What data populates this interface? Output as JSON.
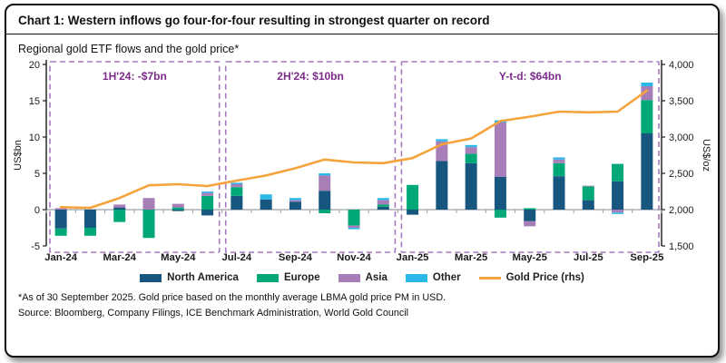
{
  "header": {
    "title": "Chart 1: Western inflows go four-for-four resulting in strongest quarter on record"
  },
  "subtitle": "Regional gold ETF flows and the gold price*",
  "axes": {
    "left_label": "US$bn",
    "right_label": "US$/oz",
    "left_ticks": [
      {
        "value": 20,
        "label": "20"
      },
      {
        "value": 15,
        "label": "15"
      },
      {
        "value": 10,
        "label": "10"
      },
      {
        "value": 5,
        "label": "5"
      },
      {
        "value": 0,
        "label": "0"
      },
      {
        "value": -5,
        "label": "-5"
      }
    ],
    "right_ticks": [
      {
        "value": 4000,
        "label": "4,000"
      },
      {
        "value": 3500,
        "label": "3,500"
      },
      {
        "value": 3000,
        "label": "3,000"
      },
      {
        "value": 2500,
        "label": "2,500"
      },
      {
        "value": 2000,
        "label": "2,000"
      },
      {
        "value": 1500,
        "label": "1,500"
      }
    ],
    "left_range": [
      -5,
      20
    ],
    "right_range": [
      1500,
      4000
    ]
  },
  "colors": {
    "north_america": "#17567F",
    "europe": "#00A878",
    "asia": "#A87EB8",
    "other": "#2BB8E8",
    "gold_line": "#F5A33C",
    "annotation_text": "#7D2B8B",
    "annotation_border": "#A678C0",
    "axis": "#1a1a1a",
    "zero_line": "#9aa0a6"
  },
  "annotations": [
    {
      "label": "1H'24: -$7bn",
      "start_month": 0,
      "end_month": 5
    },
    {
      "label": "2H'24: $10bn",
      "start_month": 6,
      "end_month": 11
    },
    {
      "label": "Y-t-d: $64bn",
      "start_month": 12,
      "end_month": 20
    }
  ],
  "legend": [
    {
      "label": "North America",
      "color": "#17567F",
      "swatch": "rect"
    },
    {
      "label": "Europe",
      "color": "#00A878",
      "swatch": "rect"
    },
    {
      "label": "Asia",
      "color": "#A87EB8",
      "swatch": "rect"
    },
    {
      "label": "Other",
      "color": "#2BB8E8",
      "swatch": "rect"
    },
    {
      "label": "Gold Price (rhs)",
      "color": "#F5A33C",
      "swatch": "line"
    }
  ],
  "chart_data": {
    "type": "bar",
    "subtype": "stacked-bars-with-line",
    "title": "Regional gold ETF flows and the gold price*",
    "ylabel_left": "US$bn",
    "ylabel_right": "US$/oz",
    "ylim_left": [
      -5,
      20
    ],
    "ylim_right": [
      1500,
      4000
    ],
    "grid": false,
    "legend_position": "bottom",
    "categories": [
      "Jan-24",
      "Feb-24",
      "Mar-24",
      "Apr-24",
      "May-24",
      "Jun-24",
      "Jul-24",
      "Aug-24",
      "Sep-24",
      "Oct-24",
      "Nov-24",
      "Dec-24",
      "Jan-25",
      "Feb-25",
      "Mar-25",
      "Apr-25",
      "May-25",
      "Jun-25",
      "Jul-25",
      "Aug-25",
      "Sep-25"
    ],
    "x_tick_labels": [
      "Jan-24",
      "Mar-24",
      "May-24",
      "Jul-24",
      "Sep-24",
      "Nov-24",
      "Jan-25",
      "Mar-25",
      "May-25",
      "Jul-25",
      "Sep-25"
    ],
    "series": [
      {
        "name": "North America",
        "axis": "left",
        "color": "#17567F",
        "values": [
          -2.6,
          -2.5,
          0.3,
          0,
          -0.2,
          -0.8,
          1.9,
          1.4,
          1.1,
          2.6,
          0,
          0.4,
          -0.7,
          6.7,
          6.4,
          4.5,
          -1.6,
          4.6,
          1.3,
          3.9,
          10.5
        ]
      },
      {
        "name": "Europe",
        "axis": "left",
        "color": "#00A878",
        "values": [
          -1.0,
          -1.1,
          -1.7,
          -3.9,
          0.3,
          1.9,
          1.2,
          0,
          0,
          -0.5,
          -2.2,
          0.3,
          3.4,
          0,
          1.3,
          -1.1,
          0.2,
          1.8,
          1.9,
          2.4,
          4.6
        ]
      },
      {
        "name": "Asia",
        "axis": "left",
        "color": "#A87EB8",
        "values": [
          0.2,
          0,
          0.4,
          1.6,
          0.5,
          0.4,
          0.4,
          0,
          0.2,
          2.1,
          -0.3,
          0.6,
          0,
          2.7,
          0.9,
          7.5,
          -0.7,
          0.5,
          0.1,
          -0.4,
          1.9
        ]
      },
      {
        "name": "Other",
        "axis": "left",
        "color": "#2BB8E8",
        "values": [
          0,
          0,
          0,
          0,
          0,
          0.2,
          0.2,
          0.7,
          0.3,
          0.3,
          -0.2,
          0.3,
          0,
          0.3,
          0.3,
          0.3,
          0,
          0.3,
          0,
          -0.2,
          0.5
        ]
      },
      {
        "name": "Gold Price (rhs)",
        "axis": "right",
        "color": "#F5A33C",
        "type": "line",
        "values": [
          2034,
          2025,
          2160,
          2335,
          2350,
          2325,
          2400,
          2470,
          2570,
          2690,
          2650,
          2640,
          2710,
          2900,
          2980,
          3220,
          3280,
          3350,
          3340,
          3350,
          3640
        ]
      }
    ]
  },
  "footnotes": [
    "*As of 30 September 2025. Gold price based on the monthly average LBMA gold price PM in USD.",
    "Source: Bloomberg, Company Filings, ICE Benchmark Administration, World Gold Council"
  ]
}
